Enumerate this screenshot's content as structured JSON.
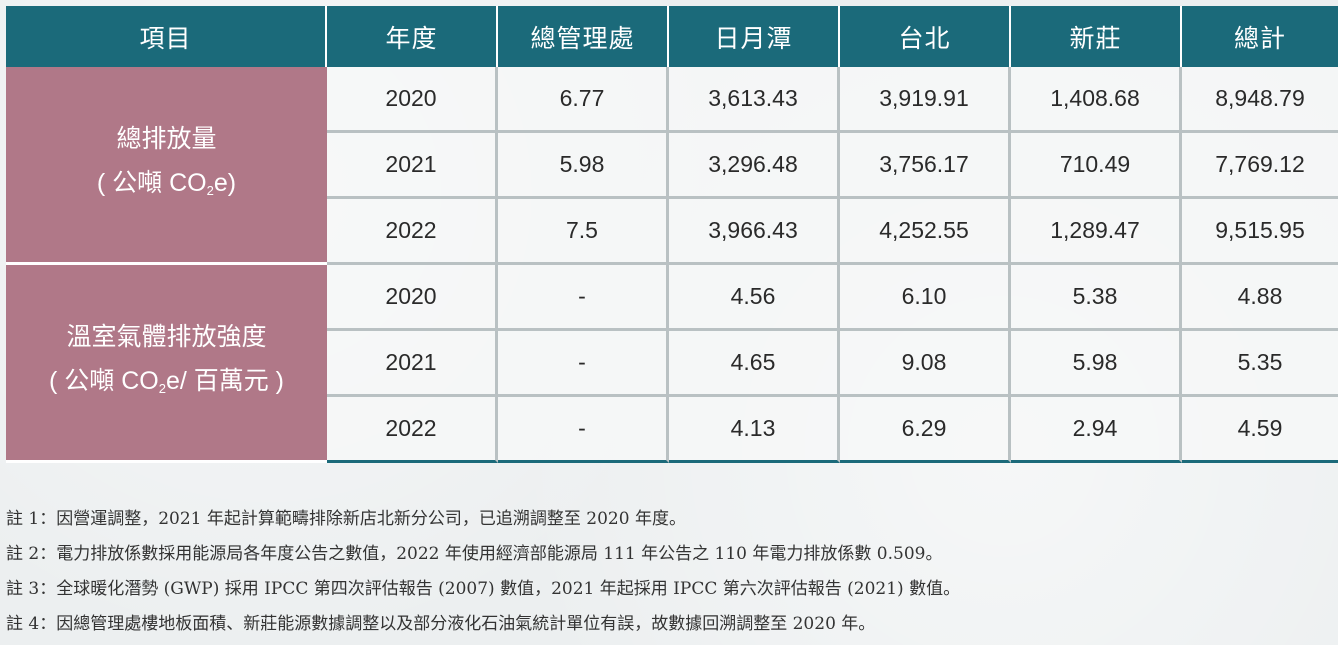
{
  "table": {
    "headers": [
      "項目",
      "年度",
      "總管理處",
      "日月潭",
      "台北",
      "新莊",
      "總計"
    ],
    "groups": [
      {
        "label": "總排放量",
        "unit_pre": "( 公噸 CO",
        "unit_sub": "2",
        "unit_post": "e)",
        "rows": [
          [
            "2020",
            "6.77",
            "3,613.43",
            "3,919.91",
            "1,408.68",
            "8,948.79"
          ],
          [
            "2021",
            "5.98",
            "3,296.48",
            "3,756.17",
            "710.49",
            "7,769.12"
          ],
          [
            "2022",
            "7.5",
            "3,966.43",
            "4,252.55",
            "1,289.47",
            "9,515.95"
          ]
        ]
      },
      {
        "label": "溫室氣體排放強度",
        "unit_pre": "( 公噸 CO",
        "unit_sub": "2",
        "unit_post": "e/ 百萬元 )",
        "rows": [
          [
            "2020",
            "-",
            "4.56",
            "6.10",
            "5.38",
            "4.88"
          ],
          [
            "2021",
            "-",
            "4.65",
            "9.08",
            "5.98",
            "5.35"
          ],
          [
            "2022",
            "-",
            "4.13",
            "6.29",
            "2.94",
            "4.59"
          ]
        ]
      }
    ]
  },
  "notes": [
    "註 1：因營運調整，2021 年起計算範疇排除新店北新分公司，已追溯調整至 2020 年度。",
    "註 2：電力排放係數採用能源局各年度公告之數值，2022 年使用經濟部能源局 111 年公告之 110 年電力排放係數 0.509。",
    "註 3：全球暖化潛勢 (GWP) 採用 IPCC 第四次評估報告 (2007) 數值，2021 年起採用 IPCC 第六次評估報告 (2021) 數值。",
    "註 4：因總管理處樓地板面積、新莊能源數據調整以及部分液化石油氣統計單位有誤，故數據回溯調整至 2020 年。"
  ],
  "colors": {
    "header_bg": "#1b6a7a",
    "item_bg": "#b07888"
  }
}
